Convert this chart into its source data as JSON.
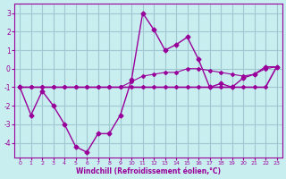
{
  "xlabel": "Windchill (Refroidissement éolien,°C)",
  "bg_color": "#c8eef0",
  "grid_color": "#a0c8d0",
  "line_color": "#990099",
  "x": [
    0,
    1,
    2,
    3,
    4,
    5,
    6,
    7,
    8,
    9,
    10,
    11,
    12,
    13,
    14,
    15,
    16,
    17,
    18,
    19,
    20,
    21,
    22,
    23
  ],
  "y_main": [
    -1.0,
    -2.5,
    -1.2,
    -2.0,
    -3.0,
    -4.2,
    -4.5,
    -3.5,
    -3.5,
    -2.5,
    -0.6,
    3.0,
    2.1,
    1.0,
    1.3,
    1.7,
    0.5,
    -1.0,
    -0.8,
    -1.0,
    -0.5,
    -0.3,
    0.1,
    0.1
  ],
  "y_line1": [
    -1.0,
    -1.0,
    -1.0,
    -1.0,
    -1.0,
    -1.0,
    -1.0,
    -1.0,
    -1.0,
    -1.0,
    -1.0,
    -1.0,
    -1.0,
    -1.0,
    -1.0,
    -1.0,
    -1.0,
    -1.0,
    -1.0,
    -1.0,
    -1.0,
    -1.0,
    -1.0,
    0.1
  ],
  "y_line2": [
    -1.0,
    -1.0,
    -1.0,
    -1.0,
    -1.0,
    -1.0,
    -1.0,
    -1.0,
    -1.0,
    -1.0,
    -0.7,
    -0.4,
    -0.3,
    -0.2,
    -0.2,
    0.0,
    0.0,
    -0.1,
    -0.2,
    -0.3,
    -0.4,
    -0.3,
    0.0,
    0.1
  ],
  "ylim": [
    -4.8,
    3.5
  ],
  "xlim": [
    -0.5,
    23.5
  ],
  "yticks": [
    -4,
    -3,
    -2,
    -1,
    0,
    1,
    2,
    3
  ],
  "xticks": [
    0,
    1,
    2,
    3,
    4,
    5,
    6,
    7,
    8,
    9,
    10,
    11,
    12,
    13,
    14,
    15,
    16,
    17,
    18,
    19,
    20,
    21,
    22,
    23
  ]
}
